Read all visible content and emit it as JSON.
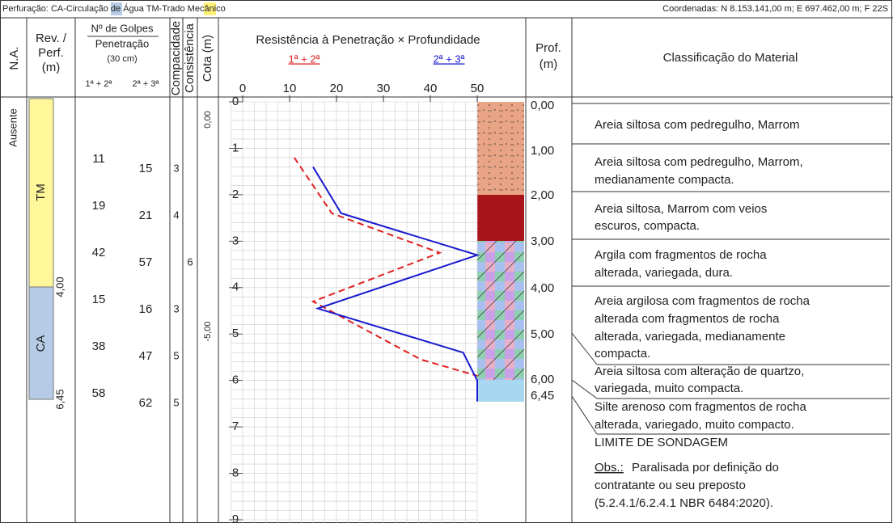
{
  "header": {
    "label": "Perfuração:",
    "methods": [
      {
        "code": "CA",
        "description": "-Circulação de Água"
      },
      {
        "code": "TM",
        "description": "-Trado Mecânico"
      }
    ],
    "coordinates": "Coordenadas: N 8.153.141,00 m; E 697.462,00 m; F 22S"
  },
  "columns": {
    "water_level": "N.A.",
    "casing": [
      "Rev. /",
      "Perf.",
      "(m)"
    ],
    "blows": [
      "Nº de Golpes",
      "Penetração",
      "(30 cm)"
    ],
    "blows_sub": [
      "1ª + 2ª",
      "2ª + 3ª"
    ],
    "compactness": "Compacidade",
    "consistency": "Consistência",
    "elevation": "Cota (m)",
    "depth": [
      "Prof.",
      "(m)"
    ],
    "classification": "Classificação do Material"
  },
  "water_level": "Ausente",
  "casing": {
    "segments": [
      "TM",
      "CA"
    ],
    "depths": [
      "4,00",
      "6,45"
    ]
  },
  "blows": [
    {
      "first": 11,
      "second": 15,
      "compactness": 3
    },
    {
      "first": 19,
      "second": 21,
      "compactness": 4
    },
    {
      "first": 42,
      "second": 57,
      "consistency": 6
    },
    {
      "first": 15,
      "second": 16,
      "compactness": 3
    },
    {
      "first": 38,
      "second": 47,
      "compactness": 5
    },
    {
      "first": 58,
      "second": 62,
      "compactness": 5
    }
  ],
  "elevations": [
    "0,00",
    "-5,00"
  ],
  "depths": [
    "0,00",
    "1,00",
    "2,00",
    "3,00",
    "4,00",
    "5,00",
    "6,00",
    "6,45"
  ],
  "materials": [
    [
      "Areia siltosa com pedregulho, Marrom"
    ],
    [
      "Areia siltosa com pedregulho, Marrom,",
      "medianamente compacta."
    ],
    [
      "Areia siltosa, Marrom com veios",
      "escuros, compacta."
    ],
    [
      "Argila com fragmentos de rocha",
      "alterada, variegada, dura."
    ],
    [
      "Areia argilosa com fragmentos de rocha",
      "alterada com fragmentos de rocha",
      "alterada, variegada, medianamente",
      "compacta."
    ],
    [
      "Areia siltosa com alteração de quartzo,",
      "variegada, muito compacta."
    ],
    [
      "Silte arenoso com fragmentos de rocha",
      "alterada, variegado, muito compacto."
    ]
  ],
  "limit": "LIMITE DE SONDAGEM",
  "obs": {
    "label": "Obs.:",
    "lines": [
      "Paralisada por definição do",
      "contratante ou seu preposto",
      "(5.2.4.1/6.2.4.1 NBR 6484:2020)."
    ]
  },
  "chart_data": {
    "type": "line",
    "title": "Resistência à Penetração × Profundidade",
    "xlim": [
      0,
      50
    ],
    "xticks": [
      0,
      10,
      20,
      30,
      40,
      50
    ],
    "ylim": [
      0,
      9
    ],
    "yticks": [
      0,
      1,
      2,
      3,
      4,
      5,
      6,
      7,
      8,
      9
    ],
    "grid": true,
    "series": [
      {
        "name": "1ª + 2ª",
        "color": "#e02020",
        "dash": true,
        "values": [
          11,
          19,
          42,
          15,
          38,
          50
        ],
        "depth": [
          1.2,
          2.4,
          3.25,
          4.3,
          5.55,
          5.9
        ]
      },
      {
        "name": "2ª + 3ª",
        "color": "#1a1ad0",
        "dash": false,
        "values": [
          15,
          21,
          50,
          16,
          47,
          50,
          50
        ],
        "depth": [
          1.4,
          2.4,
          3.3,
          4.45,
          5.4,
          6.0,
          6.45
        ]
      }
    ]
  }
}
